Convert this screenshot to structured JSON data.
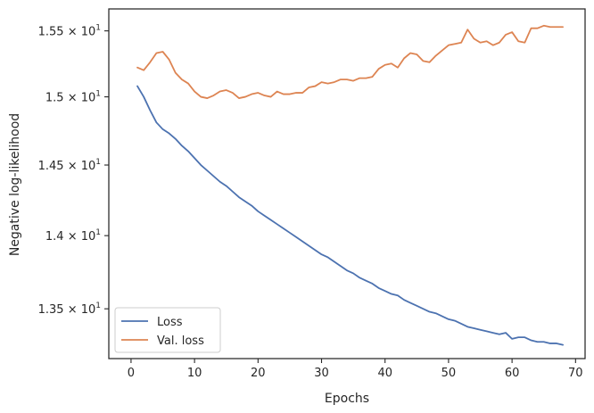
{
  "chart_data": {
    "type": "line",
    "title": "",
    "xlabel": "Epochs",
    "ylabel": "Negative log-likelihood",
    "yscale": "log",
    "xlim": [
      -3.5,
      71.5
    ],
    "ylim": [
      13.17,
      15.67
    ],
    "grid": false,
    "legend_position": "lower-left",
    "x_ticks": [
      {
        "value": 0,
        "label": "0"
      },
      {
        "value": 10,
        "label": "10"
      },
      {
        "value": 20,
        "label": "20"
      },
      {
        "value": 30,
        "label": "30"
      },
      {
        "value": 40,
        "label": "40"
      },
      {
        "value": 50,
        "label": "50"
      },
      {
        "value": 60,
        "label": "60"
      },
      {
        "value": 70,
        "label": "70"
      }
    ],
    "y_ticks": [
      {
        "value": 13.5,
        "mantissa": "1.35",
        "exponent": "1"
      },
      {
        "value": 14.0,
        "mantissa": "1.4",
        "exponent": "1"
      },
      {
        "value": 14.5,
        "mantissa": "1.45",
        "exponent": "1"
      },
      {
        "value": 15.0,
        "mantissa": "1.5",
        "exponent": "1"
      },
      {
        "value": 15.5,
        "mantissa": "1.55",
        "exponent": "1"
      }
    ],
    "x": [
      1,
      2,
      3,
      4,
      5,
      6,
      7,
      8,
      9,
      10,
      11,
      12,
      13,
      14,
      15,
      16,
      17,
      18,
      19,
      20,
      21,
      22,
      23,
      24,
      25,
      26,
      27,
      28,
      29,
      30,
      31,
      32,
      33,
      34,
      35,
      36,
      37,
      38,
      39,
      40,
      41,
      42,
      43,
      44,
      45,
      46,
      47,
      48,
      49,
      50,
      51,
      52,
      53,
      54,
      55,
      56,
      57,
      58,
      59,
      60,
      61,
      62,
      63,
      64,
      65,
      66,
      67,
      68
    ],
    "series": [
      {
        "name": "Loss",
        "color": "#4c72b0",
        "values": [
          15.08,
          15.0,
          14.9,
          14.81,
          14.76,
          14.73,
          14.69,
          14.64,
          14.6,
          14.55,
          14.5,
          14.46,
          14.42,
          14.38,
          14.35,
          14.31,
          14.27,
          14.24,
          14.21,
          14.17,
          14.14,
          14.11,
          14.08,
          14.05,
          14.02,
          13.99,
          13.96,
          13.93,
          13.9,
          13.87,
          13.85,
          13.82,
          13.79,
          13.76,
          13.74,
          13.71,
          13.69,
          13.67,
          13.64,
          13.62,
          13.6,
          13.59,
          13.56,
          13.54,
          13.52,
          13.5,
          13.48,
          13.47,
          13.45,
          13.43,
          13.42,
          13.4,
          13.38,
          13.37,
          13.36,
          13.35,
          13.34,
          13.33,
          13.34,
          13.3,
          13.31,
          13.31,
          13.29,
          13.28,
          13.28,
          13.27,
          13.27,
          13.26
        ]
      },
      {
        "name": "Val. loss",
        "color": "#dd8452",
        "values": [
          15.22,
          15.2,
          15.26,
          15.33,
          15.34,
          15.28,
          15.18,
          15.13,
          15.1,
          15.04,
          15.0,
          14.99,
          15.01,
          15.04,
          15.05,
          15.03,
          14.99,
          15.0,
          15.02,
          15.03,
          15.01,
          15.0,
          15.04,
          15.02,
          15.02,
          15.03,
          15.03,
          15.07,
          15.08,
          15.11,
          15.1,
          15.11,
          15.13,
          15.13,
          15.12,
          15.14,
          15.14,
          15.15,
          15.21,
          15.24,
          15.25,
          15.22,
          15.29,
          15.33,
          15.32,
          15.27,
          15.26,
          15.31,
          15.35,
          15.39,
          15.4,
          15.41,
          15.51,
          15.44,
          15.41,
          15.42,
          15.39,
          15.41,
          15.47,
          15.49,
          15.42,
          15.41,
          15.52,
          15.52,
          15.54,
          15.53,
          15.53,
          15.53
        ]
      }
    ]
  }
}
